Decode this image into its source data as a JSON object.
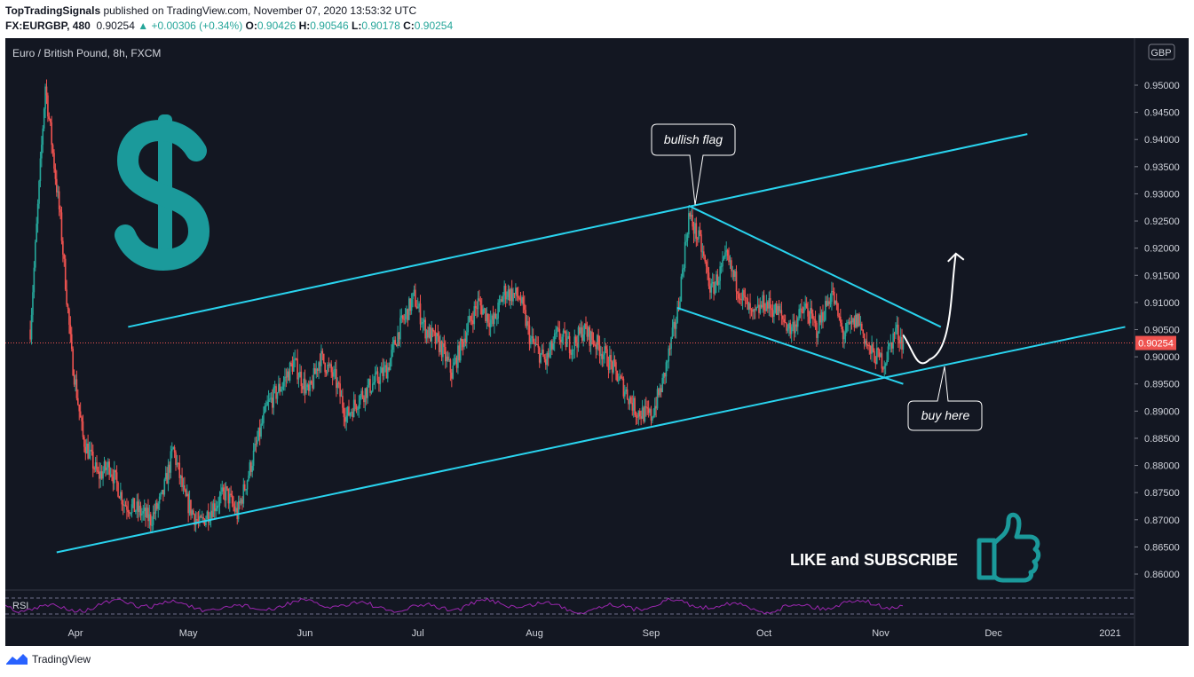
{
  "header": {
    "publisher": "TopTradingSignals",
    "published_text": " published on TradingView.com, November 07, 2020 13:53:32 UTC",
    "symbol": "FX:EURGBP, 480",
    "last": "0.90254",
    "change": "+0.00306 (+0.34%)",
    "o_label": "O:",
    "o_value": "0.90426",
    "h_label": "H:",
    "h_value": "0.90546",
    "l_label": "L:",
    "l_value": "0.90178",
    "c_label": "C:",
    "c_value": "0.90254"
  },
  "chart": {
    "legend": "Euro / British Pound, 8h, FXCM",
    "currency": "GBP",
    "last_price_label": "0.90254",
    "rsi_label": "RSI",
    "annotations": {
      "bullish_flag": "bullish flag",
      "buy_here": "buy here",
      "cta": "LIKE and SUBSCRIBE"
    },
    "colors": {
      "background": "#131722",
      "up_candle": "#26a69a",
      "down_candle": "#ef5350",
      "trendline": "#29d3ee",
      "price_line": "#ef5350",
      "rsi": "#9c27b0",
      "logo_teal": "#1b9a9b",
      "text": "#d1d4dc"
    },
    "icons": [
      "dollar-sign-icon",
      "thumbs-up-icon",
      "tradingview-logo-icon"
    ]
  },
  "chart_data": {
    "type": "candlestick",
    "title": "Euro / British Pound, 8h, FXCM",
    "xlabel": "",
    "ylabel": "",
    "x_ticks": [
      "Apr",
      "May",
      "Jun",
      "Jul",
      "Aug",
      "Sep",
      "Oct",
      "Nov",
      "Dec",
      "2021"
    ],
    "y_ticks": [
      "0.95000",
      "0.94500",
      "0.94000",
      "0.93500",
      "0.93000",
      "0.92500",
      "0.92000",
      "0.91500",
      "0.91000",
      "0.90500",
      "0.90000",
      "0.89500",
      "0.89000",
      "0.88500",
      "0.88000",
      "0.87500",
      "0.87000",
      "0.86500",
      "0.86000"
    ],
    "ylim": [
      0.855,
      0.957
    ],
    "last_price": 0.90254,
    "price_path": [
      {
        "date": "2020-03-20",
        "close": 0.905
      },
      {
        "date": "2020-03-24",
        "close": 0.95
      },
      {
        "date": "2020-03-28",
        "close": 0.925
      },
      {
        "date": "2020-03-31",
        "close": 0.9
      },
      {
        "date": "2020-04-03",
        "close": 0.885
      },
      {
        "date": "2020-04-07",
        "close": 0.878
      },
      {
        "date": "2020-04-10",
        "close": 0.88
      },
      {
        "date": "2020-04-14",
        "close": 0.873
      },
      {
        "date": "2020-04-17",
        "close": 0.872
      },
      {
        "date": "2020-04-21",
        "close": 0.87
      },
      {
        "date": "2020-04-24",
        "close": 0.874
      },
      {
        "date": "2020-04-27",
        "close": 0.883
      },
      {
        "date": "2020-04-30",
        "close": 0.874
      },
      {
        "date": "2020-05-04",
        "close": 0.869
      },
      {
        "date": "2020-05-07",
        "close": 0.872
      },
      {
        "date": "2020-05-11",
        "close": 0.875
      },
      {
        "date": "2020-05-14",
        "close": 0.871
      },
      {
        "date": "2020-05-18",
        "close": 0.881
      },
      {
        "date": "2020-05-22",
        "close": 0.891
      },
      {
        "date": "2020-05-26",
        "close": 0.895
      },
      {
        "date": "2020-05-29",
        "close": 0.899
      },
      {
        "date": "2020-06-02",
        "close": 0.893
      },
      {
        "date": "2020-06-05",
        "close": 0.9
      },
      {
        "date": "2020-06-09",
        "close": 0.896
      },
      {
        "date": "2020-06-12",
        "close": 0.889
      },
      {
        "date": "2020-06-16",
        "close": 0.893
      },
      {
        "date": "2020-06-19",
        "close": 0.895
      },
      {
        "date": "2020-06-23",
        "close": 0.898
      },
      {
        "date": "2020-06-26",
        "close": 0.905
      },
      {
        "date": "2020-06-30",
        "close": 0.911
      },
      {
        "date": "2020-07-03",
        "close": 0.905
      },
      {
        "date": "2020-07-07",
        "close": 0.902
      },
      {
        "date": "2020-07-10",
        "close": 0.897
      },
      {
        "date": "2020-07-14",
        "close": 0.905
      },
      {
        "date": "2020-07-17",
        "close": 0.91
      },
      {
        "date": "2020-07-21",
        "close": 0.906
      },
      {
        "date": "2020-07-24",
        "close": 0.912
      },
      {
        "date": "2020-07-28",
        "close": 0.911
      },
      {
        "date": "2020-07-31",
        "close": 0.903
      },
      {
        "date": "2020-08-04",
        "close": 0.899
      },
      {
        "date": "2020-08-07",
        "close": 0.904
      },
      {
        "date": "2020-08-11",
        "close": 0.902
      },
      {
        "date": "2020-08-14",
        "close": 0.905
      },
      {
        "date": "2020-08-18",
        "close": 0.902
      },
      {
        "date": "2020-08-21",
        "close": 0.899
      },
      {
        "date": "2020-08-25",
        "close": 0.894
      },
      {
        "date": "2020-08-28",
        "close": 0.89
      },
      {
        "date": "2020-09-01",
        "close": 0.889
      },
      {
        "date": "2020-09-04",
        "close": 0.895
      },
      {
        "date": "2020-09-08",
        "close": 0.908
      },
      {
        "date": "2020-09-11",
        "close": 0.926
      },
      {
        "date": "2020-09-14",
        "close": 0.921
      },
      {
        "date": "2020-09-17",
        "close": 0.912
      },
      {
        "date": "2020-09-21",
        "close": 0.918
      },
      {
        "date": "2020-09-24",
        "close": 0.913
      },
      {
        "date": "2020-09-28",
        "close": 0.907
      },
      {
        "date": "2020-10-01",
        "close": 0.91
      },
      {
        "date": "2020-10-05",
        "close": 0.908
      },
      {
        "date": "2020-10-08",
        "close": 0.905
      },
      {
        "date": "2020-10-12",
        "close": 0.909
      },
      {
        "date": "2020-10-15",
        "close": 0.905
      },
      {
        "date": "2020-10-19",
        "close": 0.912
      },
      {
        "date": "2020-10-22",
        "close": 0.904
      },
      {
        "date": "2020-10-26",
        "close": 0.907
      },
      {
        "date": "2020-10-29",
        "close": 0.901
      },
      {
        "date": "2020-11-02",
        "close": 0.899
      },
      {
        "date": "2020-11-05",
        "close": 0.905
      },
      {
        "date": "2020-11-07",
        "close": 0.90254
      }
    ],
    "trendlines": [
      {
        "name": "channel-upper",
        "from": {
          "date": "2020-04-15",
          "price": 0.9055
        },
        "to": {
          "date": "2020-12-10",
          "price": 0.941
        }
      },
      {
        "name": "channel-lower",
        "from": {
          "date": "2020-03-27",
          "price": 0.864
        },
        "to": {
          "date": "2021-01-05",
          "price": 0.9055
        }
      },
      {
        "name": "flag-upper",
        "from": {
          "date": "2020-09-11",
          "price": 0.9278
        },
        "to": {
          "date": "2020-11-17",
          "price": 0.9055
        }
      },
      {
        "name": "flag-lower",
        "from": {
          "date": "2020-09-08",
          "price": 0.909
        },
        "to": {
          "date": "2020-11-07",
          "price": 0.895
        }
      }
    ],
    "projection": [
      {
        "date": "2020-11-07",
        "price": 0.904
      },
      {
        "date": "2020-11-14",
        "price": 0.8995
      },
      {
        "date": "2020-11-21",
        "price": 0.919
      }
    ]
  }
}
